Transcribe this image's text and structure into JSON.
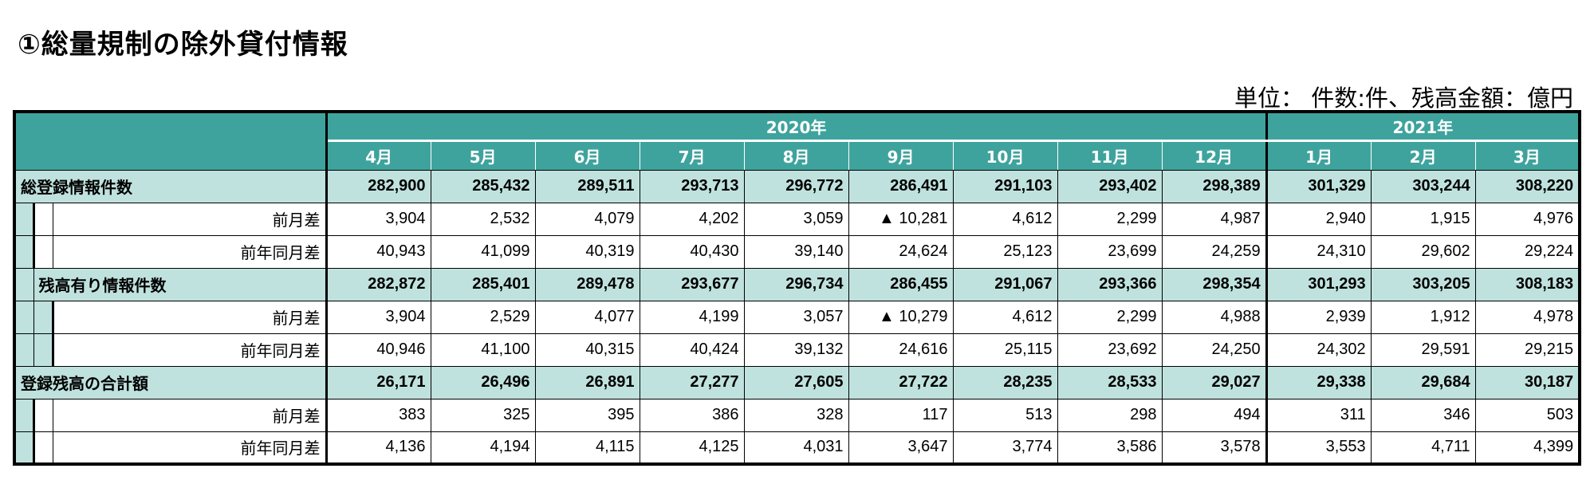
{
  "title": "①総量規制の除外貸付情報",
  "unit_note": "単位： 件数:件、残高金額：億円",
  "years": [
    "2020年",
    "2021年"
  ],
  "months": [
    "4月",
    "5月",
    "6月",
    "7月",
    "8月",
    "9月",
    "10月",
    "11月",
    "12月",
    "1月",
    "2月",
    "3月"
  ],
  "sections": [
    {
      "label": "総登録情報件数",
      "values": [
        "282,900",
        "285,432",
        "289,511",
        "293,713",
        "296,772",
        "286,491",
        "291,103",
        "293,402",
        "298,389",
        "301,329",
        "303,244",
        "308,220"
      ],
      "subs": [
        {
          "label": "前月差",
          "values": [
            "3,904",
            "2,532",
            "4,079",
            "4,202",
            "3,059",
            "▲ 10,281",
            "4,612",
            "2,299",
            "4,987",
            "2,940",
            "1,915",
            "4,976"
          ]
        },
        {
          "label": "前年同月差",
          "values": [
            "40,943",
            "41,099",
            "40,319",
            "40,430",
            "39,140",
            "24,624",
            "25,123",
            "23,699",
            "24,259",
            "24,310",
            "29,602",
            "29,224"
          ]
        }
      ]
    },
    {
      "label": "残高有り情報件数",
      "values": [
        "282,872",
        "285,401",
        "289,478",
        "293,677",
        "296,734",
        "286,455",
        "291,067",
        "293,366",
        "298,354",
        "301,293",
        "303,205",
        "308,183"
      ],
      "subs": [
        {
          "label": "前月差",
          "values": [
            "3,904",
            "2,529",
            "4,077",
            "4,199",
            "3,057",
            "▲ 10,279",
            "4,612",
            "2,299",
            "4,988",
            "2,939",
            "1,912",
            "4,978"
          ]
        },
        {
          "label": "前年同月差",
          "values": [
            "40,946",
            "41,100",
            "40,315",
            "40,424",
            "39,132",
            "24,616",
            "25,115",
            "23,692",
            "24,250",
            "24,302",
            "29,591",
            "29,215"
          ]
        }
      ]
    },
    {
      "label": "登録残高の合計額",
      "values": [
        "26,171",
        "26,496",
        "26,891",
        "27,277",
        "27,605",
        "27,722",
        "28,235",
        "28,533",
        "29,027",
        "29,338",
        "29,684",
        "30,187"
      ],
      "subs": [
        {
          "label": "前月差",
          "values": [
            "383",
            "325",
            "395",
            "386",
            "328",
            "117",
            "513",
            "298",
            "494",
            "311",
            "346",
            "503"
          ]
        },
        {
          "label": "前年同月差",
          "values": [
            "4,136",
            "4,194",
            "4,115",
            "4,125",
            "4,031",
            "3,647",
            "3,774",
            "3,586",
            "3,578",
            "3,553",
            "4,711",
            "4,399"
          ]
        }
      ]
    }
  ],
  "colors": {
    "header": "#3fa39d",
    "band": "#bfe2de"
  }
}
